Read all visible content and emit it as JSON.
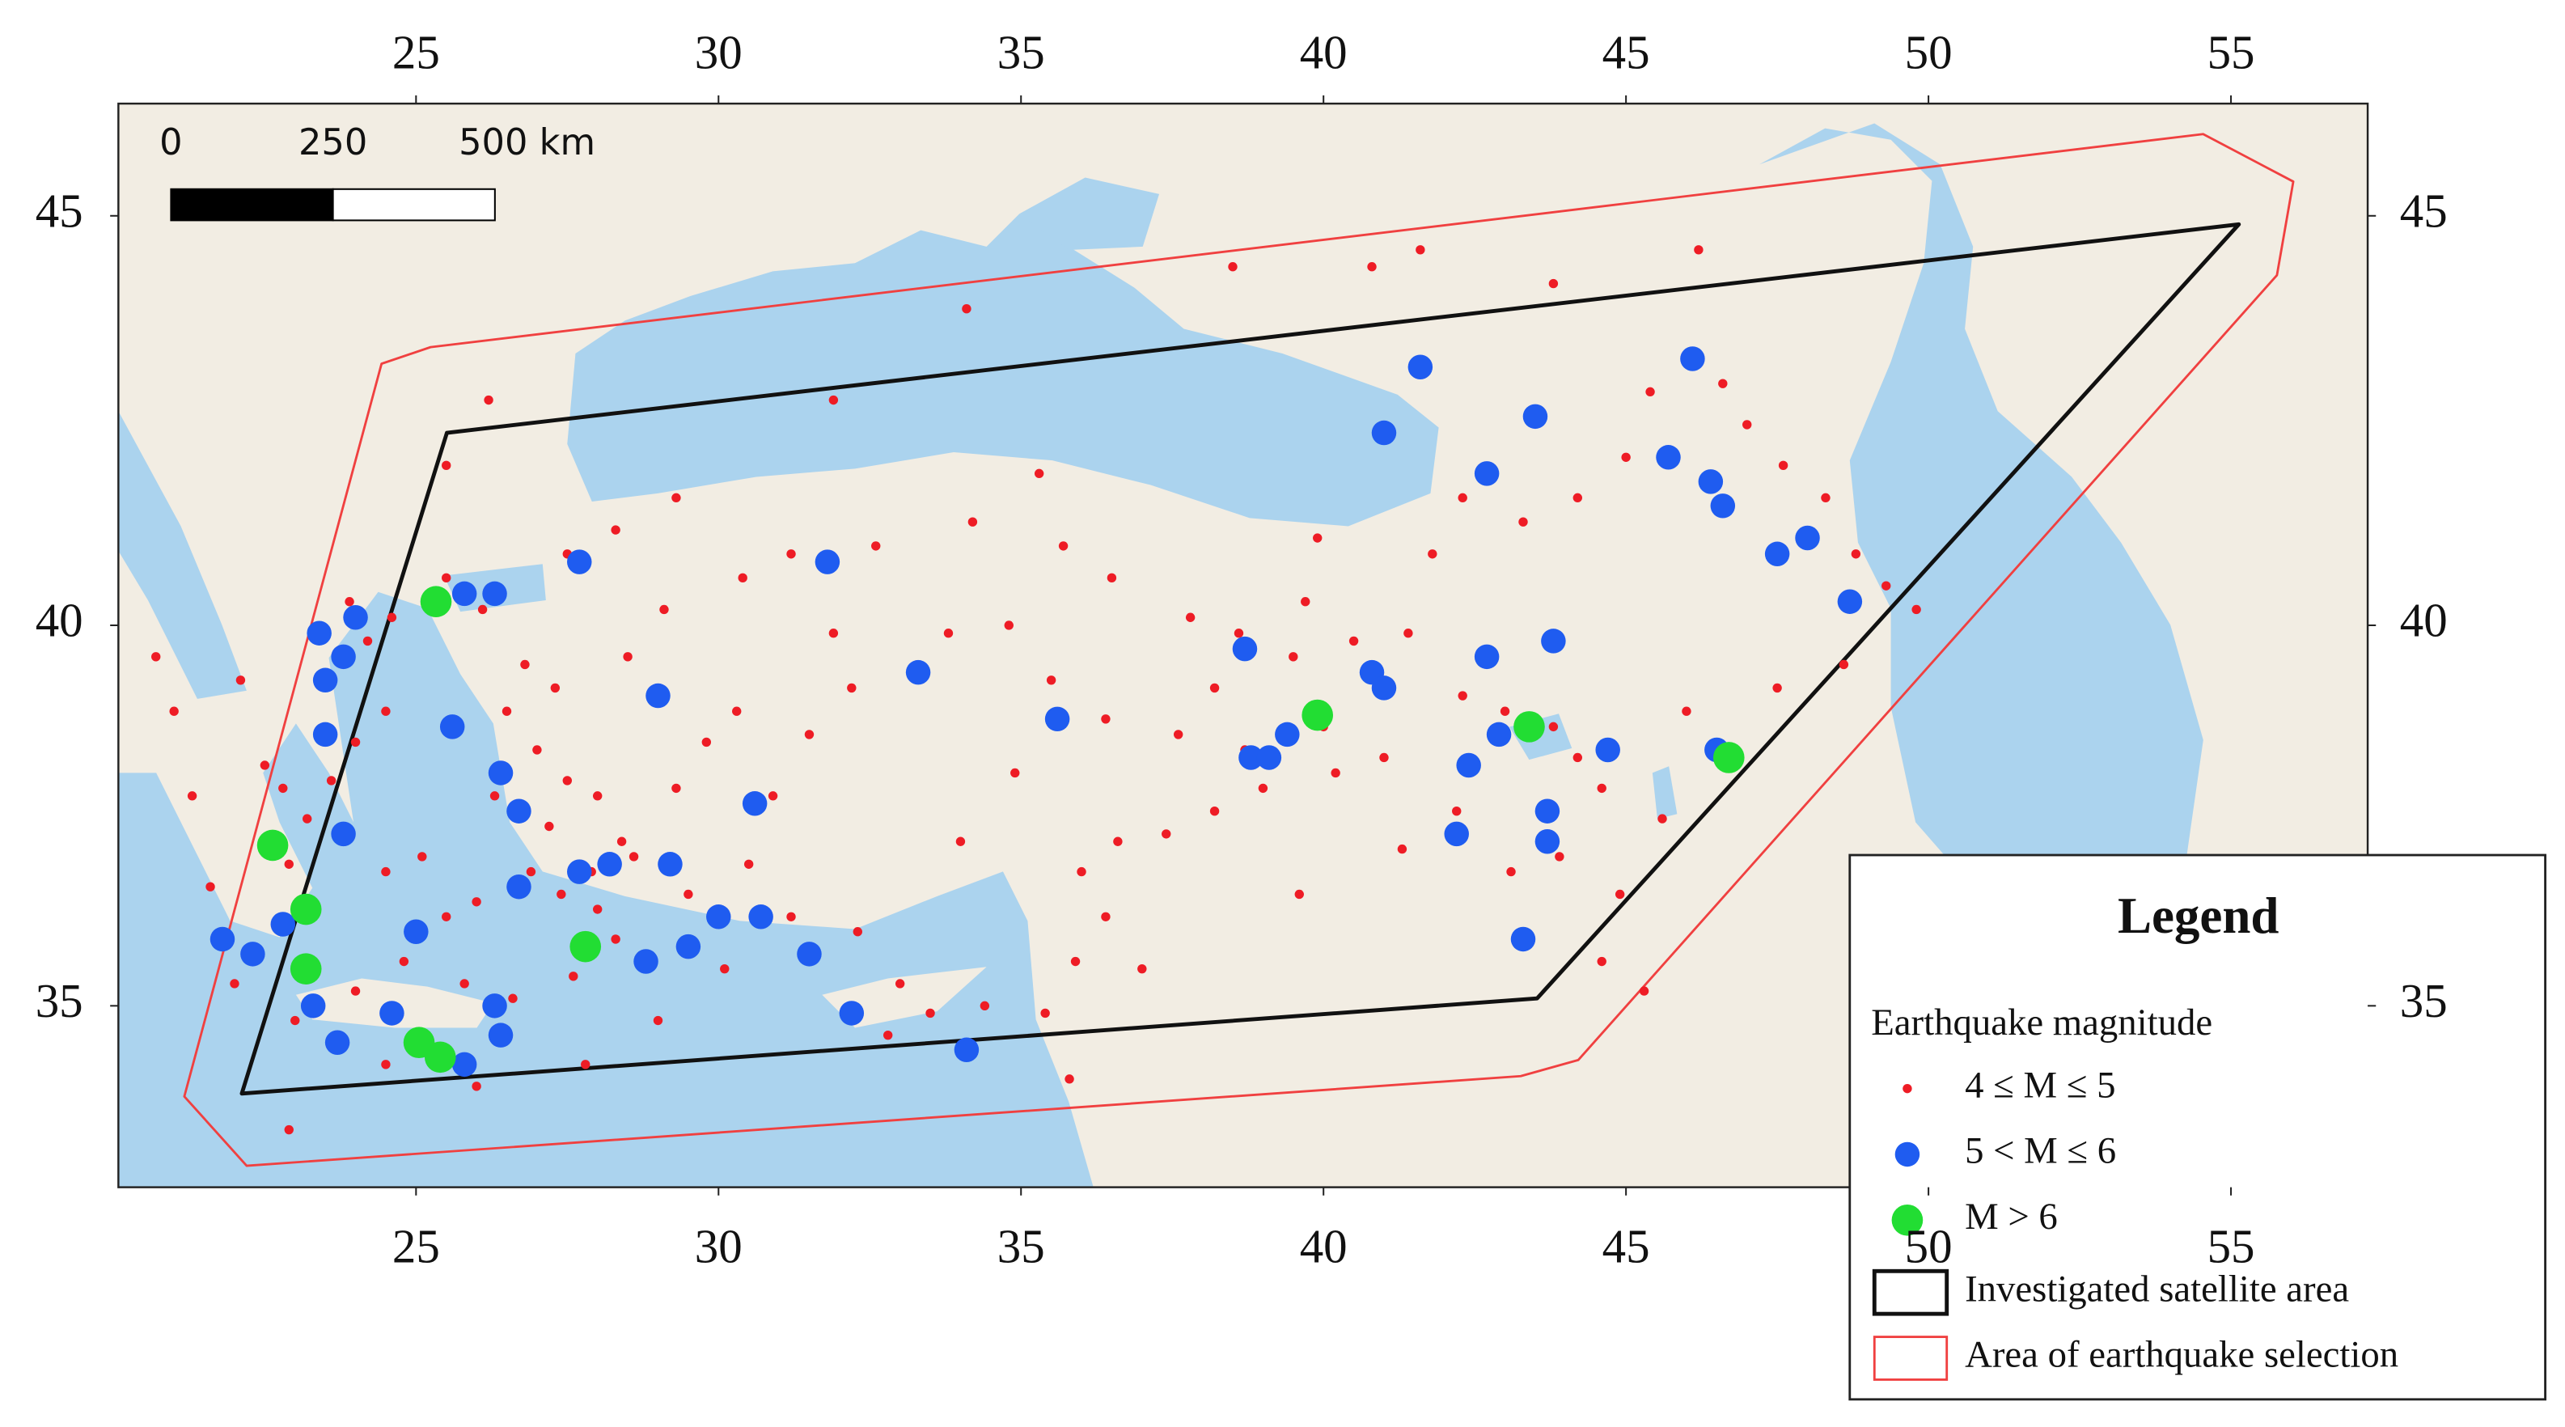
{
  "chart_data": {
    "type": "scatter",
    "projection": "mercator",
    "xlim": [
      20.08,
      57.26
    ],
    "ylim": [
      32.5,
      46.3
    ],
    "xticks": [
      25,
      30,
      35,
      40,
      45,
      50,
      55
    ],
    "yticks": [
      35,
      40,
      45
    ],
    "scale_bar": {
      "ticks": [
        0,
        250,
        {
          "value": 500,
          "label": "500 km"
        }
      ]
    },
    "legend": {
      "title": "Legend",
      "subtitle": "Earthquake magnitude",
      "position": "lower right"
    },
    "areas": [
      {
        "name": "Investigated satellite area",
        "color": "#111111",
        "points": [
          [
            22.12,
            33.8
          ],
          [
            25.51,
            42.4
          ],
          [
            55.13,
            44.9
          ],
          [
            43.53,
            35.1
          ]
        ]
      },
      {
        "name": "Area of earthquake selection",
        "color": "#f04040",
        "points": [
          [
            22.2,
            32.8
          ],
          [
            21.17,
            33.76
          ],
          [
            24.43,
            43.24
          ],
          [
            25.24,
            43.44
          ],
          [
            54.54,
            45.95
          ],
          [
            56.03,
            45.4
          ],
          [
            55.76,
            44.3
          ],
          [
            44.21,
            34.26
          ],
          [
            43.26,
            34.04
          ]
        ]
      }
    ],
    "series": [
      {
        "name": "4 ≤ M ≤ 5",
        "color": "#ee1c25",
        "marker_size": 2.8,
        "points": [
          [
            22.5,
            38.2
          ],
          [
            22.8,
            37.9
          ],
          [
            23.2,
            37.5
          ],
          [
            22.9,
            36.9
          ],
          [
            23.6,
            38.0
          ],
          [
            24.0,
            38.5
          ],
          [
            24.5,
            38.9
          ],
          [
            24.2,
            39.8
          ],
          [
            23.9,
            40.3
          ],
          [
            24.6,
            40.1
          ],
          [
            25.5,
            40.6
          ],
          [
            26.1,
            40.2
          ],
          [
            26.8,
            39.5
          ],
          [
            27.3,
            39.2
          ],
          [
            26.5,
            38.9
          ],
          [
            27.0,
            38.4
          ],
          [
            27.5,
            38.0
          ],
          [
            28.0,
            37.8
          ],
          [
            27.2,
            37.4
          ],
          [
            28.4,
            37.2
          ],
          [
            26.9,
            36.8
          ],
          [
            27.4,
            36.5
          ],
          [
            28.0,
            36.3
          ],
          [
            26.0,
            36.4
          ],
          [
            25.5,
            36.2
          ],
          [
            24.8,
            35.6
          ],
          [
            25.8,
            35.3
          ],
          [
            26.6,
            35.1
          ],
          [
            27.6,
            35.4
          ],
          [
            28.3,
            35.9
          ],
          [
            24.0,
            35.2
          ],
          [
            23.0,
            34.8
          ],
          [
            22.0,
            35.3
          ],
          [
            21.6,
            36.6
          ],
          [
            21.3,
            37.8
          ],
          [
            21.0,
            38.9
          ],
          [
            20.7,
            39.6
          ],
          [
            22.1,
            39.3
          ],
          [
            27.9,
            36.8
          ],
          [
            28.6,
            37.0
          ],
          [
            29.5,
            36.5
          ],
          [
            30.5,
            36.9
          ],
          [
            31.2,
            36.2
          ],
          [
            30.1,
            35.5
          ],
          [
            29.0,
            34.8
          ],
          [
            27.8,
            34.2
          ],
          [
            26.0,
            33.9
          ],
          [
            24.5,
            34.2
          ],
          [
            22.9,
            33.3
          ],
          [
            29.3,
            37.9
          ],
          [
            29.8,
            38.5
          ],
          [
            30.3,
            38.9
          ],
          [
            28.5,
            39.6
          ],
          [
            29.1,
            40.2
          ],
          [
            30.4,
            40.6
          ],
          [
            31.2,
            40.9
          ],
          [
            32.6,
            41.0
          ],
          [
            34.2,
            41.3
          ],
          [
            35.7,
            41.0
          ],
          [
            36.5,
            40.6
          ],
          [
            37.8,
            40.1
          ],
          [
            38.6,
            39.9
          ],
          [
            39.5,
            39.6
          ],
          [
            40.5,
            39.8
          ],
          [
            41.4,
            39.9
          ],
          [
            42.3,
            39.1
          ],
          [
            43.0,
            38.9
          ],
          [
            43.8,
            38.7
          ],
          [
            44.2,
            38.3
          ],
          [
            44.6,
            37.9
          ],
          [
            43.9,
            37.0
          ],
          [
            43.1,
            36.8
          ],
          [
            42.2,
            37.6
          ],
          [
            41.0,
            38.3
          ],
          [
            40.2,
            38.1
          ],
          [
            39.0,
            37.9
          ],
          [
            38.2,
            37.6
          ],
          [
            37.4,
            37.3
          ],
          [
            36.6,
            37.2
          ],
          [
            36.0,
            36.8
          ],
          [
            36.4,
            36.2
          ],
          [
            35.9,
            35.6
          ],
          [
            35.4,
            34.9
          ],
          [
            34.4,
            35.0
          ],
          [
            33.5,
            34.9
          ],
          [
            32.8,
            34.6
          ],
          [
            33.0,
            35.3
          ],
          [
            32.3,
            36.0
          ],
          [
            34.0,
            37.2
          ],
          [
            34.9,
            38.1
          ],
          [
            35.5,
            39.3
          ],
          [
            33.8,
            39.9
          ],
          [
            32.2,
            39.2
          ],
          [
            31.5,
            38.6
          ],
          [
            30.9,
            37.8
          ],
          [
            36.4,
            38.8
          ],
          [
            37.6,
            38.6
          ],
          [
            38.2,
            39.2
          ],
          [
            39.7,
            40.3
          ],
          [
            41.8,
            40.9
          ],
          [
            42.3,
            41.6
          ],
          [
            43.3,
            41.3
          ],
          [
            44.2,
            41.6
          ],
          [
            45.0,
            42.1
          ],
          [
            45.4,
            42.9
          ],
          [
            46.6,
            43.0
          ],
          [
            47.0,
            42.5
          ],
          [
            47.6,
            42.0
          ],
          [
            48.3,
            41.6
          ],
          [
            48.8,
            40.9
          ],
          [
            49.3,
            40.5
          ],
          [
            49.8,
            40.2
          ],
          [
            48.6,
            39.5
          ],
          [
            47.5,
            39.2
          ],
          [
            46.0,
            38.9
          ],
          [
            45.6,
            37.5
          ],
          [
            44.9,
            36.5
          ],
          [
            44.6,
            35.6
          ],
          [
            46.2,
            44.6
          ],
          [
            41.6,
            44.6
          ],
          [
            43.8,
            44.2
          ],
          [
            40.8,
            44.4
          ],
          [
            39.9,
            41.1
          ],
          [
            35.3,
            41.9
          ],
          [
            38.5,
            44.4
          ],
          [
            45.3,
            35.2
          ],
          [
            41.3,
            37.1
          ],
          [
            39.6,
            36.5
          ],
          [
            37.0,
            35.5
          ],
          [
            35.8,
            34.0
          ],
          [
            34.8,
            40.0
          ],
          [
            31.9,
            39.9
          ],
          [
            27.5,
            40.9
          ],
          [
            28.3,
            41.2
          ],
          [
            26.2,
            42.8
          ],
          [
            25.5,
            42.0
          ],
          [
            29.3,
            41.6
          ],
          [
            31.9,
            42.8
          ],
          [
            34.1,
            43.9
          ],
          [
            38.7,
            38.4
          ],
          [
            40.0,
            38.7
          ],
          [
            26.3,
            37.8
          ],
          [
            25.1,
            37.0
          ],
          [
            24.5,
            36.8
          ]
        ]
      },
      {
        "name": "5 < M ≤ 6",
        "color": "#1f5cf0",
        "marker_size": 7.5,
        "points": [
          [
            41.6,
            43.2
          ],
          [
            41.0,
            42.4
          ],
          [
            43.5,
            42.6
          ],
          [
            42.7,
            41.9
          ],
          [
            46.1,
            43.3
          ],
          [
            45.7,
            42.1
          ],
          [
            46.4,
            41.8
          ],
          [
            46.6,
            41.5
          ],
          [
            47.5,
            40.9
          ],
          [
            48.0,
            41.1
          ],
          [
            48.7,
            40.3
          ],
          [
            27.7,
            40.8
          ],
          [
            25.8,
            40.4
          ],
          [
            26.3,
            40.4
          ],
          [
            31.8,
            40.8
          ],
          [
            23.4,
            39.9
          ],
          [
            23.8,
            39.6
          ],
          [
            24.0,
            40.1
          ],
          [
            23.5,
            39.3
          ],
          [
            23.5,
            38.6
          ],
          [
            25.6,
            38.7
          ],
          [
            26.4,
            38.1
          ],
          [
            26.7,
            37.6
          ],
          [
            29.0,
            39.1
          ],
          [
            33.3,
            39.4
          ],
          [
            35.6,
            38.8
          ],
          [
            30.6,
            37.7
          ],
          [
            23.8,
            37.3
          ],
          [
            22.8,
            36.1
          ],
          [
            21.8,
            35.9
          ],
          [
            22.3,
            35.7
          ],
          [
            25.0,
            36.0
          ],
          [
            23.3,
            35.0
          ],
          [
            23.7,
            34.5
          ],
          [
            24.6,
            34.9
          ],
          [
            25.8,
            34.2
          ],
          [
            26.4,
            34.6
          ],
          [
            26.3,
            35.0
          ],
          [
            26.7,
            36.6
          ],
          [
            27.7,
            36.8
          ],
          [
            28.2,
            36.9
          ],
          [
            29.2,
            36.9
          ],
          [
            28.8,
            35.6
          ],
          [
            29.5,
            35.8
          ],
          [
            30.0,
            36.2
          ],
          [
            30.7,
            36.2
          ],
          [
            31.5,
            35.7
          ],
          [
            32.2,
            34.9
          ],
          [
            34.1,
            34.4
          ],
          [
            38.8,
            38.3
          ],
          [
            39.1,
            38.3
          ],
          [
            39.4,
            38.6
          ],
          [
            40.8,
            39.4
          ],
          [
            41.0,
            39.2
          ],
          [
            42.7,
            39.6
          ],
          [
            43.8,
            39.8
          ],
          [
            42.9,
            38.6
          ],
          [
            42.4,
            38.2
          ],
          [
            42.2,
            37.3
          ],
          [
            43.7,
            37.6
          ],
          [
            43.7,
            37.2
          ],
          [
            43.3,
            35.9
          ],
          [
            44.7,
            38.4
          ],
          [
            46.5,
            38.4
          ],
          [
            38.7,
            39.7
          ]
        ]
      },
      {
        "name": "M > 6",
        "color": "#22dd33",
        "marker_size": 9.5,
        "points": [
          [
            25.33,
            40.3
          ],
          [
            22.63,
            37.15
          ],
          [
            23.18,
            36.3
          ],
          [
            23.18,
            35.5
          ],
          [
            27.8,
            35.8
          ],
          [
            25.05,
            34.5
          ],
          [
            25.4,
            34.3
          ],
          [
            39.9,
            38.85
          ],
          [
            43.4,
            38.7
          ],
          [
            46.7,
            38.3
          ]
        ]
      }
    ]
  }
}
